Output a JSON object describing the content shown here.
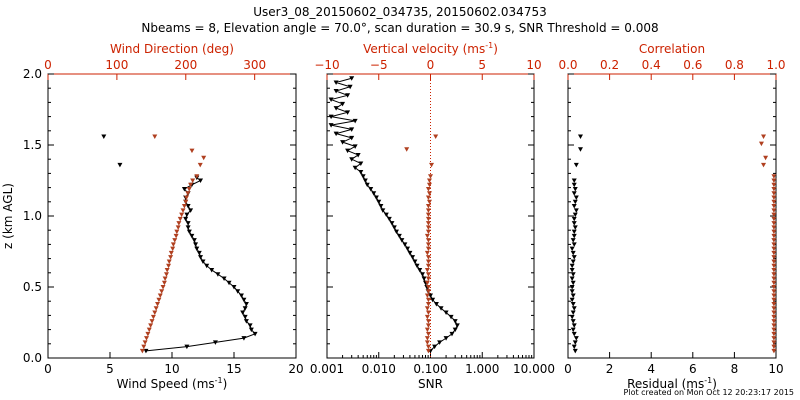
{
  "title_line1": "User3_08_20150602_034735, 20150602.034753",
  "title_line2": "Nbeams = 8, Elevation angle = 70.0°, scan duration = 30.9 s, SNR Threshold = 0.008",
  "footer": "Plot created on Mon Oct 12 20:23:17 2015",
  "colors": {
    "black": "#000000",
    "red": "#cc2200",
    "brown": "#b04020"
  },
  "chart_data": [
    {
      "type": "scatter",
      "panel": "wind",
      "ylabel": "z (km AGL)",
      "ylim": [
        0,
        2.0
      ],
      "yticks": [
        "0.0",
        "0.5",
        "1.0",
        "1.5",
        "2.0"
      ],
      "bottom_axis": {
        "label": "Wind Speed",
        "unit": "(ms",
        "unit_sup": "-1",
        "unit_end": ")",
        "range": [
          0,
          20
        ],
        "ticks": [
          "0",
          "5",
          "10",
          "15",
          "20"
        ]
      },
      "top_axis": {
        "label": "Wind Direction (deg)",
        "range": [
          0,
          360
        ],
        "ticks": [
          "0",
          "100",
          "200",
          "300"
        ]
      },
      "series": [
        {
          "axis": "bottom",
          "color": "#000000",
          "connected": true,
          "z": [
            0.05,
            0.08,
            0.11,
            0.14,
            0.17,
            0.2,
            0.23,
            0.26,
            0.29,
            0.32,
            0.35,
            0.38,
            0.41,
            0.44,
            0.47,
            0.5,
            0.53,
            0.56,
            0.59,
            0.62,
            0.65,
            0.68,
            0.71,
            0.74,
            0.77,
            0.8,
            0.83,
            0.86,
            0.89,
            0.92,
            0.95,
            0.98,
            1.01,
            1.04,
            1.07,
            1.1,
            1.13,
            1.16,
            1.19,
            1.22,
            1.25,
            1.27
          ],
          "x": [
            7.9,
            11.2,
            13.5,
            15.8,
            16.7,
            16.4,
            16.3,
            16.0,
            15.9,
            15.7,
            15.9,
            16.0,
            15.8,
            15.6,
            15.3,
            15.0,
            14.6,
            14.2,
            13.7,
            13.2,
            12.8,
            12.5,
            12.3,
            12.2,
            12.0,
            11.9,
            11.8,
            11.6,
            11.4,
            11.3,
            11.3,
            11.1,
            11.2,
            11.5,
            11.3,
            11.1,
            11.1,
            11.3,
            11.0,
            11.6,
            12.3,
            12.0
          ]
        },
        {
          "axis": "bottom",
          "color": "#000000",
          "connected": false,
          "z": [
            1.56,
            1.36
          ],
          "x": [
            4.5,
            5.8
          ]
        },
        {
          "axis": "top",
          "color": "#b04020",
          "connected": false,
          "z": [
            0.05,
            0.08,
            0.11,
            0.14,
            0.17,
            0.2,
            0.23,
            0.26,
            0.29,
            0.32,
            0.35,
            0.38,
            0.41,
            0.44,
            0.47,
            0.5,
            0.53,
            0.56,
            0.59,
            0.62,
            0.65,
            0.68,
            0.71,
            0.74,
            0.77,
            0.8,
            0.83,
            0.86,
            0.89,
            0.92,
            0.95,
            0.98,
            1.01,
            1.04,
            1.07,
            1.1,
            1.13,
            1.16,
            1.19,
            1.22,
            1.25,
            1.28,
            1.46,
            1.41,
            1.36,
            1.56
          ],
          "x": [
            137,
            139,
            141,
            143,
            145,
            147,
            149,
            151,
            153,
            155,
            157,
            159,
            161,
            163,
            165,
            167,
            169,
            170,
            172,
            173,
            175,
            176,
            178,
            179,
            181,
            182,
            184,
            186,
            187,
            189,
            190,
            192,
            194,
            196,
            198,
            200,
            201,
            203,
            205,
            207,
            210,
            216,
            209,
            226,
            221,
            155
          ]
        }
      ]
    },
    {
      "type": "scatter",
      "panel": "snr",
      "ylim": [
        0,
        2.0
      ],
      "bottom_axis": {
        "label": "SNR",
        "scale": "log",
        "range": [
          0.001,
          10
        ],
        "ticks": [
          "0.001",
          "0.010",
          "0.100",
          "1.000",
          "10.000"
        ]
      },
      "top_axis": {
        "label": "Vertical velocity",
        "unit": "(ms",
        "unit_sup": "-1",
        "unit_end": ")",
        "range": [
          -10,
          10
        ],
        "ticks": [
          "−10",
          "−5",
          "0",
          "5",
          "10"
        ]
      },
      "series": [
        {
          "axis": "bottom",
          "color": "#000000",
          "connected": true,
          "z": [
            0.05,
            0.08,
            0.11,
            0.14,
            0.17,
            0.2,
            0.23,
            0.26,
            0.29,
            0.32,
            0.35,
            0.38,
            0.41,
            0.44,
            0.47,
            0.5,
            0.53,
            0.56,
            0.59,
            0.62,
            0.65,
            0.68,
            0.71,
            0.74,
            0.77,
            0.8,
            0.83,
            0.86,
            0.89,
            0.92,
            0.95,
            0.98,
            1.01,
            1.04,
            1.07,
            1.1,
            1.13,
            1.16,
            1.19,
            1.22,
            1.25,
            1.28,
            1.31,
            1.34,
            1.37,
            1.4,
            1.43,
            1.46,
            1.49,
            1.52,
            1.55,
            1.58,
            1.61,
            1.64,
            1.67,
            1.7,
            1.73,
            1.76,
            1.79,
            1.82,
            1.85,
            1.88,
            1.91,
            1.94,
            1.97
          ],
          "x": [
            0.1,
            0.12,
            0.15,
            0.2,
            0.26,
            0.3,
            0.33,
            0.3,
            0.25,
            0.2,
            0.16,
            0.13,
            0.11,
            0.1,
            0.09,
            0.085,
            0.08,
            0.075,
            0.07,
            0.062,
            0.055,
            0.05,
            0.045,
            0.04,
            0.036,
            0.032,
            0.028,
            0.025,
            0.022,
            0.02,
            0.018,
            0.016,
            0.014,
            0.012,
            0.011,
            0.01,
            0.009,
            0.008,
            0.007,
            0.006,
            0.0055,
            0.005,
            0.0045,
            0.0035,
            0.0045,
            0.003,
            0.004,
            0.0025,
            0.0035,
            0.002,
            0.003,
            0.0015,
            0.003,
            0.0012,
            0.0035,
            0.0012,
            0.0025,
            0.0015,
            0.002,
            0.0012,
            0.0025,
            0.0015,
            0.0028,
            0.0015,
            0.003
          ]
        },
        {
          "axis": "top",
          "color": "#b04020",
          "connected": false,
          "z": [
            0.05,
            0.08,
            0.11,
            0.14,
            0.17,
            0.2,
            0.23,
            0.26,
            0.29,
            0.32,
            0.35,
            0.38,
            0.41,
            0.44,
            0.47,
            0.5,
            0.53,
            0.56,
            0.59,
            0.62,
            0.65,
            0.68,
            0.71,
            0.74,
            0.77,
            0.8,
            0.83,
            0.86,
            0.89,
            0.92,
            0.95,
            0.98,
            1.01,
            1.04,
            1.07,
            1.1,
            1.13,
            1.16,
            1.19,
            1.22,
            1.25,
            1.28,
            1.36,
            1.47,
            1.56
          ],
          "x": [
            -0.2,
            -0.2,
            -0.3,
            -0.3,
            -0.2,
            -0.3,
            -0.2,
            -0.2,
            -0.3,
            -0.2,
            -0.3,
            -0.2,
            -0.2,
            -0.3,
            -0.2,
            -0.2,
            -0.3,
            -0.2,
            -0.2,
            -0.3,
            -0.2,
            -0.2,
            -0.2,
            -0.3,
            -0.2,
            -0.2,
            -0.2,
            -0.3,
            -0.2,
            -0.2,
            -0.2,
            -0.2,
            -0.2,
            -0.2,
            -0.2,
            -0.1,
            -0.2,
            -0.1,
            -0.2,
            -0.1,
            -0.1,
            0.0,
            0.1,
            -2.3,
            0.5
          ]
        }
      ],
      "reference_line": {
        "axis": "top",
        "value": 0,
        "style": "dotted",
        "color": "#cc2200"
      }
    },
    {
      "type": "scatter",
      "panel": "residual",
      "ylim": [
        0,
        2.0
      ],
      "bottom_axis": {
        "label": "Residual",
        "unit": "(ms",
        "unit_sup": "-1",
        "unit_end": ")",
        "range": [
          0,
          10
        ],
        "ticks": [
          "0",
          "2",
          "4",
          "6",
          "8",
          "10"
        ]
      },
      "top_axis": {
        "label": "Correlation",
        "range": [
          0,
          1.0
        ],
        "ticks": [
          "0.0",
          "0.2",
          "0.4",
          "0.6",
          "0.8",
          "1.0"
        ]
      },
      "series": [
        {
          "axis": "bottom",
          "color": "#000000",
          "connected": false,
          "z": [
            0.05,
            0.08,
            0.11,
            0.14,
            0.17,
            0.2,
            0.23,
            0.26,
            0.29,
            0.32,
            0.35,
            0.38,
            0.41,
            0.44,
            0.47,
            0.5,
            0.53,
            0.56,
            0.59,
            0.62,
            0.65,
            0.68,
            0.71,
            0.74,
            0.77,
            0.8,
            0.83,
            0.86,
            0.89,
            0.92,
            0.95,
            0.98,
            1.01,
            1.04,
            1.07,
            1.1,
            1.13,
            1.16,
            1.19,
            1.22,
            1.25,
            1.36,
            1.47,
            1.56
          ],
          "x": [
            0.35,
            0.3,
            0.35,
            0.4,
            0.3,
            0.25,
            0.3,
            0.25,
            0.2,
            0.25,
            0.3,
            0.25,
            0.2,
            0.25,
            0.2,
            0.2,
            0.25,
            0.2,
            0.25,
            0.2,
            0.2,
            0.25,
            0.3,
            0.25,
            0.2,
            0.3,
            0.25,
            0.3,
            0.3,
            0.35,
            0.3,
            0.3,
            0.35,
            0.4,
            0.3,
            0.35,
            0.4,
            0.3,
            0.35,
            0.3,
            0.3,
            0.4,
            0.6,
            0.6
          ]
        },
        {
          "axis": "top",
          "color": "#b04020",
          "connected": false,
          "z": [
            0.05,
            0.08,
            0.11,
            0.14,
            0.17,
            0.2,
            0.23,
            0.26,
            0.29,
            0.32,
            0.35,
            0.38,
            0.41,
            0.44,
            0.47,
            0.5,
            0.53,
            0.56,
            0.59,
            0.62,
            0.65,
            0.68,
            0.71,
            0.74,
            0.77,
            0.8,
            0.83,
            0.86,
            0.89,
            0.92,
            0.95,
            0.98,
            1.01,
            1.04,
            1.07,
            1.1,
            1.13,
            1.16,
            1.19,
            1.22,
            1.25,
            1.28,
            1.36,
            1.41,
            1.51,
            1.56
          ],
          "x": [
            0.99,
            0.99,
            0.99,
            0.99,
            0.99,
            0.99,
            0.99,
            0.99,
            0.99,
            0.99,
            0.99,
            0.99,
            0.99,
            0.99,
            0.99,
            0.99,
            0.99,
            0.99,
            0.99,
            0.99,
            0.99,
            0.99,
            0.99,
            0.99,
            0.99,
            0.99,
            0.99,
            0.99,
            0.99,
            0.99,
            0.99,
            0.99,
            0.99,
            0.99,
            0.99,
            0.99,
            0.99,
            0.99,
            0.99,
            0.99,
            0.99,
            0.99,
            0.94,
            0.95,
            0.93,
            0.94
          ]
        }
      ]
    }
  ]
}
